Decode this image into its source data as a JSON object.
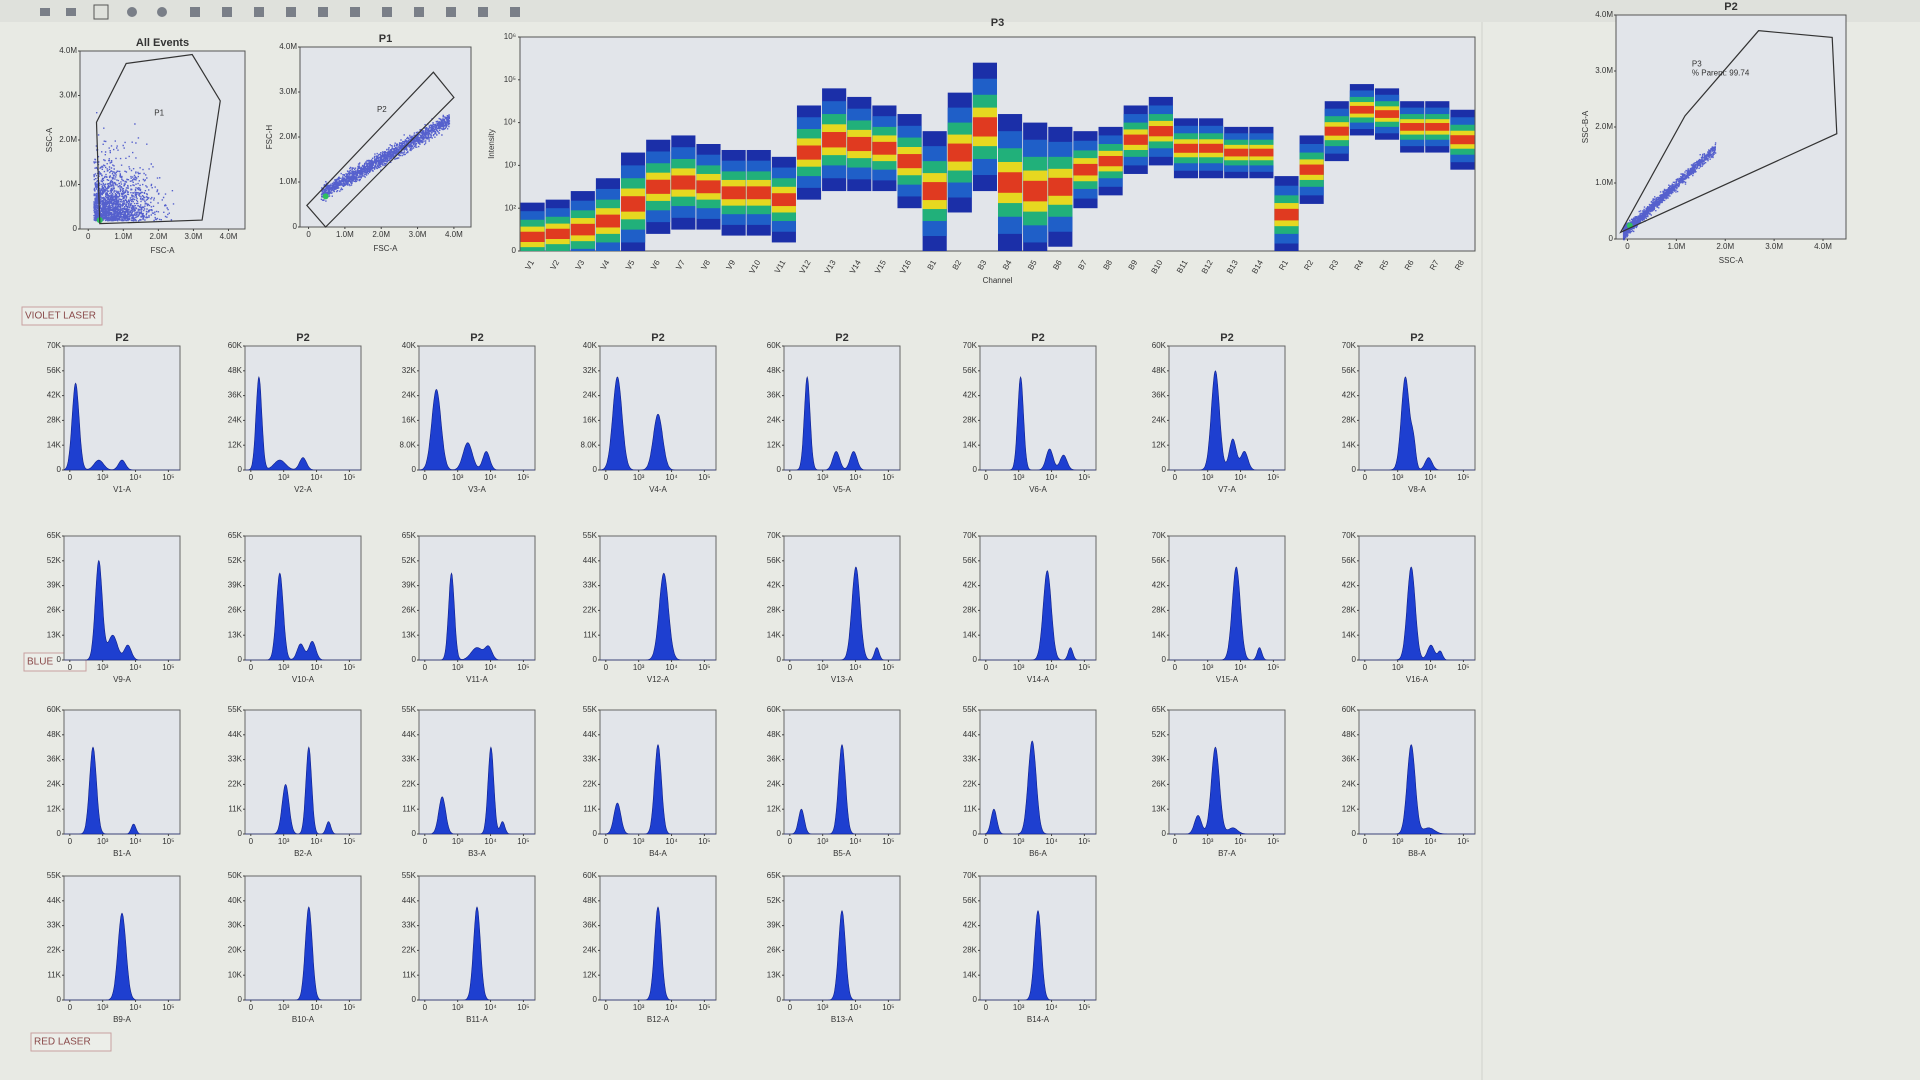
{
  "sections": [
    "VIOLET LASER",
    "BLUE",
    "RED LASER"
  ],
  "scatter": [
    {
      "title": "All Events",
      "xlabel": "FSC-A",
      "ylabel": "SSC-A",
      "gate_label": "P1",
      "xticks": [
        "0",
        "1.0M",
        "2.0M",
        "3.0M",
        "4.0M"
      ],
      "yticks": [
        "0",
        "1.0M",
        "2.0M",
        "3.0M",
        "4.0M"
      ]
    },
    {
      "title": "P1",
      "xlabel": "FSC-A",
      "ylabel": "FSC-H",
      "gate_label": "P2",
      "xticks": [
        "0",
        "1.0M",
        "2.0M",
        "3.0M",
        "4.0M"
      ],
      "yticks": [
        "0",
        "1.0M",
        "2.0M",
        "3.0M",
        "4.0M"
      ]
    },
    {
      "title": "P2",
      "xlabel": "SSC-A",
      "ylabel": "SSC-B-A",
      "gate_label": "P3",
      "note": "% Parent: 99.74",
      "xticks": [
        "0",
        "1.0M",
        "2.0M",
        "3.0M",
        "4.0M"
      ],
      "yticks": [
        "0",
        "1.0M",
        "2.0M",
        "3.0M",
        "4.0M"
      ]
    }
  ],
  "heatmap": {
    "title": "P3",
    "xlabel": "Channel",
    "ylabel": "Intensity",
    "yticks": [
      "0",
      "10²",
      "10³",
      "10⁴",
      "10⁵",
      "10⁶"
    ],
    "ylim": [
      0,
      5
    ],
    "channels": [
      "V1",
      "V2",
      "V3",
      "V4",
      "V5",
      "V6",
      "V7",
      "V8",
      "V9",
      "V10",
      "V11",
      "V12",
      "V13",
      "V14",
      "V15",
      "V16",
      "B1",
      "B2",
      "B3",
      "B4",
      "B5",
      "B6",
      "B7",
      "B8",
      "B9",
      "B10",
      "B11",
      "B12",
      "B13",
      "B14",
      "R1",
      "R2",
      "R3",
      "R4",
      "R5",
      "R6",
      "R7",
      "R8"
    ],
    "columns": [
      [
        0.33,
        0.8
      ],
      [
        0.4,
        0.8
      ],
      [
        0.5,
        0.9
      ],
      [
        0.7,
        1.0
      ],
      [
        1.1,
        1.2
      ],
      [
        1.5,
        1.1
      ],
      [
        1.6,
        1.1
      ],
      [
        1.5,
        1.0
      ],
      [
        1.36,
        1.0
      ],
      [
        1.36,
        1.0
      ],
      [
        1.2,
        1.0
      ],
      [
        2.3,
        1.1
      ],
      [
        2.6,
        1.2
      ],
      [
        2.5,
        1.1
      ],
      [
        2.4,
        1.0
      ],
      [
        2.1,
        1.1
      ],
      [
        1.4,
        1.4
      ],
      [
        2.3,
        1.4
      ],
      [
        2.9,
        1.5
      ],
      [
        1.6,
        1.6
      ],
      [
        1.4,
        1.6
      ],
      [
        1.5,
        1.4
      ],
      [
        1.9,
        0.9
      ],
      [
        2.1,
        0.8
      ],
      [
        2.6,
        0.8
      ],
      [
        2.8,
        0.8
      ],
      [
        2.4,
        0.7
      ],
      [
        2.4,
        0.7
      ],
      [
        2.3,
        0.6
      ],
      [
        2.3,
        0.6
      ],
      [
        0.85,
        0.9
      ],
      [
        1.9,
        0.8
      ],
      [
        2.8,
        0.7
      ],
      [
        3.3,
        0.6
      ],
      [
        3.2,
        0.6
      ],
      [
        2.9,
        0.6
      ],
      [
        2.9,
        0.6
      ],
      [
        2.6,
        0.7
      ]
    ]
  },
  "hist_xticks": [
    "0",
    "10³",
    "10⁴",
    "10⁵"
  ],
  "histograms": [
    {
      "title": "P2",
      "xlabel": "V1-A",
      "yticks": [
        "0",
        "14K",
        "28K",
        "42K",
        "56K",
        "70K"
      ],
      "peaks": [
        [
          0.1,
          0.7,
          0.03
        ],
        [
          0.3,
          0.08,
          0.04
        ],
        [
          0.5,
          0.08,
          0.03
        ]
      ]
    },
    {
      "title": "P2",
      "xlabel": "V2-A",
      "yticks": [
        "0",
        "12K",
        "24K",
        "36K",
        "48K",
        "60K"
      ],
      "peaks": [
        [
          0.12,
          0.75,
          0.025
        ],
        [
          0.3,
          0.08,
          0.05
        ],
        [
          0.5,
          0.1,
          0.03
        ]
      ]
    },
    {
      "title": "P2",
      "xlabel": "V3-A",
      "yticks": [
        "0",
        "8.0K",
        "16K",
        "24K",
        "32K",
        "40K"
      ],
      "peaks": [
        [
          0.15,
          0.65,
          0.04
        ],
        [
          0.42,
          0.22,
          0.04
        ],
        [
          0.58,
          0.15,
          0.03
        ]
      ]
    },
    {
      "title": "P2",
      "xlabel": "V4-A",
      "yticks": [
        "0",
        "8.0K",
        "16K",
        "24K",
        "32K",
        "40K"
      ],
      "peaks": [
        [
          0.15,
          0.75,
          0.04
        ],
        [
          0.5,
          0.45,
          0.04
        ]
      ]
    },
    {
      "title": "P2",
      "xlabel": "V5-A",
      "yticks": [
        "0",
        "12K",
        "24K",
        "36K",
        "48K",
        "60K"
      ],
      "peaks": [
        [
          0.2,
          0.75,
          0.025
        ],
        [
          0.45,
          0.15,
          0.03
        ],
        [
          0.6,
          0.15,
          0.03
        ]
      ]
    },
    {
      "title": "P2",
      "xlabel": "V6-A",
      "yticks": [
        "0",
        "14K",
        "28K",
        "42K",
        "56K",
        "70K"
      ],
      "peaks": [
        [
          0.35,
          0.75,
          0.025
        ],
        [
          0.6,
          0.17,
          0.03
        ],
        [
          0.72,
          0.12,
          0.03
        ]
      ]
    },
    {
      "title": "P2",
      "xlabel": "V7-A",
      "yticks": [
        "0",
        "12K",
        "24K",
        "36K",
        "48K",
        "60K"
      ],
      "peaks": [
        [
          0.4,
          0.8,
          0.035
        ],
        [
          0.55,
          0.25,
          0.03
        ],
        [
          0.65,
          0.15,
          0.03
        ]
      ]
    },
    {
      "title": "P2",
      "xlabel": "V8-A",
      "yticks": [
        "0",
        "14K",
        "28K",
        "42K",
        "56K",
        "70K"
      ],
      "peaks": [
        [
          0.4,
          0.75,
          0.035
        ],
        [
          0.47,
          0.2,
          0.02
        ],
        [
          0.6,
          0.1,
          0.03
        ]
      ]
    },
    {
      "xlabel": "V9-A",
      "yticks": [
        "0",
        "13K",
        "26K",
        "39K",
        "52K",
        "65K"
      ],
      "peaks": [
        [
          0.3,
          0.8,
          0.03
        ],
        [
          0.42,
          0.2,
          0.04
        ],
        [
          0.55,
          0.12,
          0.03
        ]
      ]
    },
    {
      "xlabel": "V10-A",
      "yticks": [
        "0",
        "13K",
        "26K",
        "39K",
        "52K",
        "65K"
      ],
      "peaks": [
        [
          0.3,
          0.7,
          0.03
        ],
        [
          0.48,
          0.13,
          0.03
        ],
        [
          0.58,
          0.15,
          0.03
        ]
      ]
    },
    {
      "xlabel": "V11-A",
      "yticks": [
        "0",
        "13K",
        "26K",
        "39K",
        "52K",
        "65K"
      ],
      "peaks": [
        [
          0.28,
          0.7,
          0.025
        ],
        [
          0.5,
          0.1,
          0.05
        ],
        [
          0.6,
          0.1,
          0.03
        ]
      ]
    },
    {
      "xlabel": "V12-A",
      "yticks": [
        "0",
        "11K",
        "22K",
        "33K",
        "44K",
        "55K"
      ],
      "peaks": [
        [
          0.55,
          0.7,
          0.04
        ]
      ]
    },
    {
      "xlabel": "V13-A",
      "yticks": [
        "0",
        "14K",
        "28K",
        "42K",
        "56K",
        "70K"
      ],
      "peaks": [
        [
          0.62,
          0.75,
          0.035
        ],
        [
          0.8,
          0.1,
          0.02
        ]
      ]
    },
    {
      "xlabel": "V14-A",
      "yticks": [
        "0",
        "14K",
        "28K",
        "42K",
        "56K",
        "70K"
      ],
      "peaks": [
        [
          0.58,
          0.72,
          0.035
        ],
        [
          0.78,
          0.1,
          0.02
        ]
      ]
    },
    {
      "xlabel": "V15-A",
      "yticks": [
        "0",
        "14K",
        "28K",
        "42K",
        "56K",
        "70K"
      ],
      "peaks": [
        [
          0.58,
          0.75,
          0.035
        ],
        [
          0.78,
          0.1,
          0.02
        ]
      ]
    },
    {
      "xlabel": "V16-A",
      "yticks": [
        "0",
        "14K",
        "28K",
        "42K",
        "56K",
        "70K"
      ],
      "peaks": [
        [
          0.45,
          0.75,
          0.035
        ],
        [
          0.62,
          0.12,
          0.03
        ],
        [
          0.7,
          0.07,
          0.02
        ]
      ]
    },
    {
      "xlabel": "B1-A",
      "yticks": [
        "0",
        "12K",
        "24K",
        "36K",
        "48K",
        "60K"
      ],
      "peaks": [
        [
          0.25,
          0.7,
          0.03
        ],
        [
          0.6,
          0.08,
          0.02
        ]
      ]
    },
    {
      "xlabel": "B2-A",
      "yticks": [
        "0",
        "11K",
        "22K",
        "33K",
        "44K",
        "55K"
      ],
      "peaks": [
        [
          0.35,
          0.4,
          0.03
        ],
        [
          0.55,
          0.7,
          0.025
        ],
        [
          0.72,
          0.1,
          0.02
        ]
      ]
    },
    {
      "xlabel": "B3-A",
      "yticks": [
        "0",
        "11K",
        "22K",
        "33K",
        "44K",
        "55K"
      ],
      "peaks": [
        [
          0.2,
          0.3,
          0.03
        ],
        [
          0.62,
          0.7,
          0.025
        ],
        [
          0.72,
          0.1,
          0.02
        ]
      ]
    },
    {
      "xlabel": "B4-A",
      "yticks": [
        "0",
        "11K",
        "22K",
        "33K",
        "44K",
        "55K"
      ],
      "peaks": [
        [
          0.15,
          0.25,
          0.03
        ],
        [
          0.5,
          0.72,
          0.03
        ]
      ]
    },
    {
      "xlabel": "B5-A",
      "yticks": [
        "0",
        "12K",
        "24K",
        "36K",
        "48K",
        "60K"
      ],
      "peaks": [
        [
          0.15,
          0.2,
          0.025
        ],
        [
          0.5,
          0.72,
          0.03
        ]
      ]
    },
    {
      "xlabel": "B6-A",
      "yticks": [
        "0",
        "11K",
        "22K",
        "33K",
        "44K",
        "55K"
      ],
      "peaks": [
        [
          0.12,
          0.2,
          0.025
        ],
        [
          0.45,
          0.75,
          0.035
        ]
      ]
    },
    {
      "xlabel": "B7-A",
      "yticks": [
        "0",
        "13K",
        "26K",
        "39K",
        "52K",
        "65K"
      ],
      "peaks": [
        [
          0.25,
          0.15,
          0.03
        ],
        [
          0.4,
          0.7,
          0.035
        ],
        [
          0.55,
          0.05,
          0.04
        ]
      ]
    },
    {
      "xlabel": "B8-A",
      "yticks": [
        "0",
        "12K",
        "24K",
        "36K",
        "48K",
        "60K"
      ],
      "peaks": [
        [
          0.45,
          0.72,
          0.035
        ],
        [
          0.6,
          0.05,
          0.05
        ]
      ]
    },
    {
      "xlabel": "B9-A",
      "yticks": [
        "0",
        "11K",
        "22K",
        "33K",
        "44K",
        "55K"
      ],
      "peaks": [
        [
          0.5,
          0.7,
          0.035
        ]
      ]
    },
    {
      "xlabel": "B10-A",
      "yticks": [
        "0",
        "10K",
        "20K",
        "30K",
        "40K",
        "50K"
      ],
      "peaks": [
        [
          0.55,
          0.75,
          0.03
        ]
      ]
    },
    {
      "xlabel": "B11-A",
      "yticks": [
        "0",
        "11K",
        "22K",
        "33K",
        "44K",
        "55K"
      ],
      "peaks": [
        [
          0.5,
          0.75,
          0.03
        ]
      ]
    },
    {
      "xlabel": "B12-A",
      "yticks": [
        "0",
        "12K",
        "24K",
        "36K",
        "48K",
        "60K"
      ],
      "peaks": [
        [
          0.5,
          0.75,
          0.03
        ]
      ]
    },
    {
      "xlabel": "B13-A",
      "yticks": [
        "0",
        "13K",
        "26K",
        "39K",
        "52K",
        "65K"
      ],
      "peaks": [
        [
          0.5,
          0.72,
          0.03
        ]
      ]
    },
    {
      "xlabel": "B14-A",
      "yticks": [
        "0",
        "14K",
        "28K",
        "42K",
        "56K",
        "70K"
      ],
      "peaks": [
        [
          0.5,
          0.72,
          0.03
        ]
      ]
    }
  ]
}
